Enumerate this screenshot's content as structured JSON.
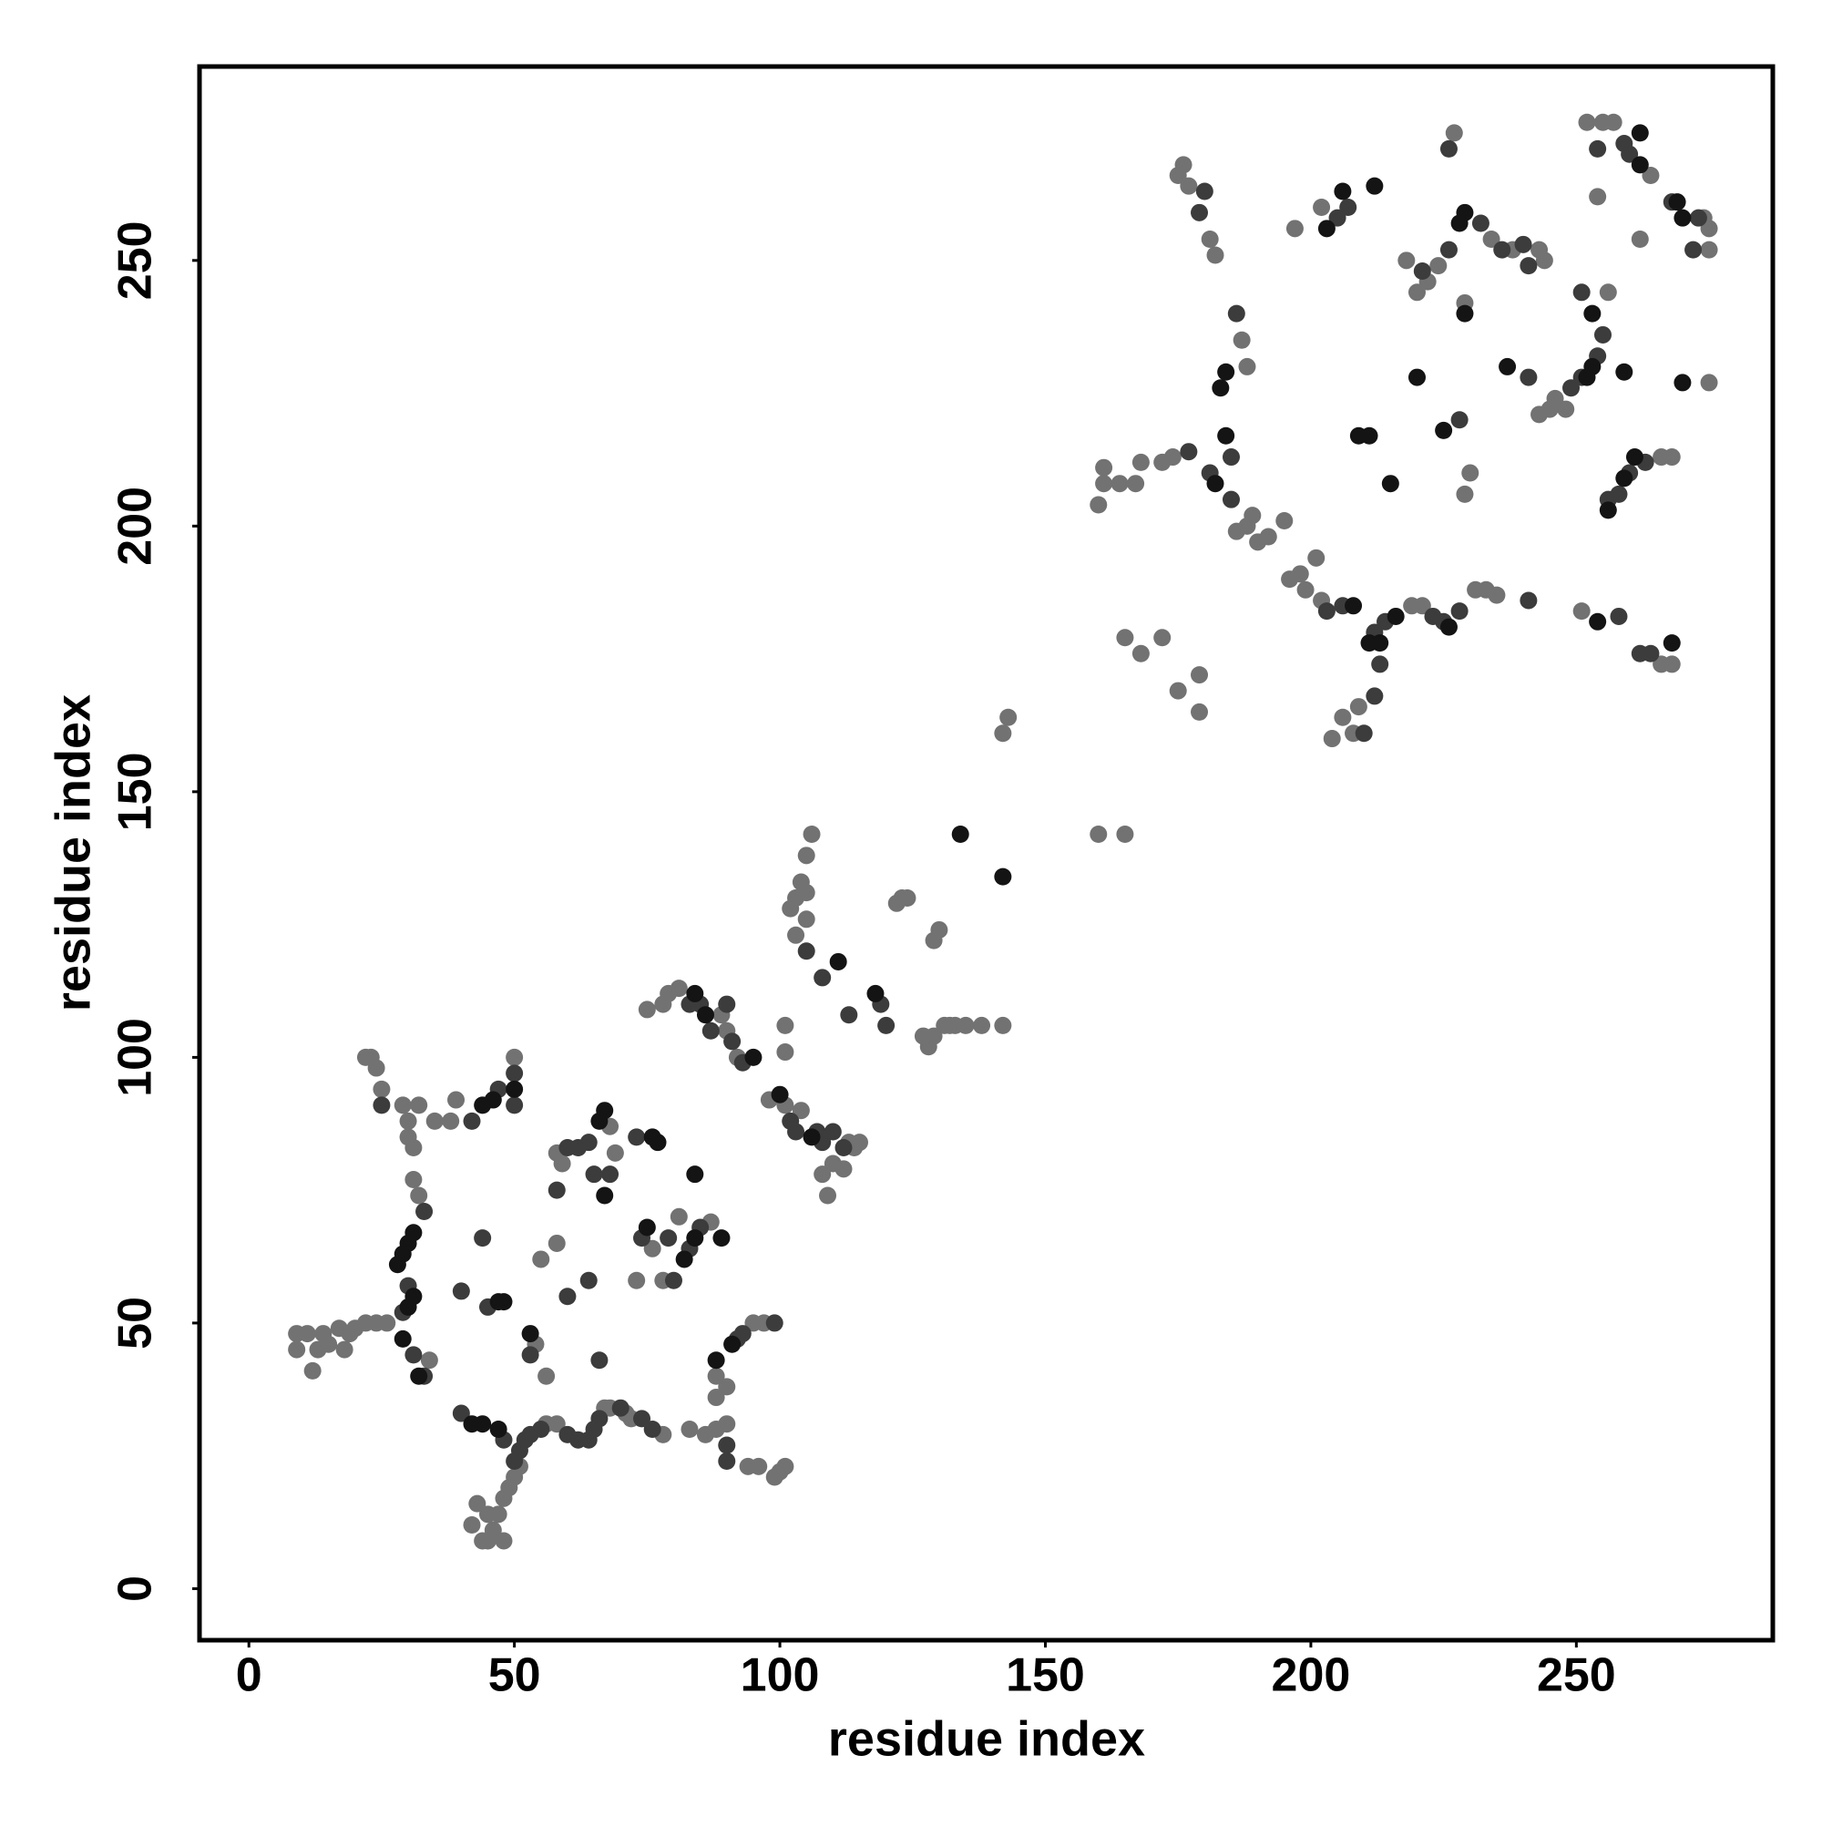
{
  "chart_data": {
    "type": "scatter",
    "xlabel": "residue index",
    "ylabel": "residue index",
    "xlim": [
      -9.3,
      287
    ],
    "ylim": [
      -9.7,
      286.5
    ],
    "xticks": [
      0,
      50,
      100,
      150,
      200,
      250
    ],
    "yticks": [
      0,
      50,
      100,
      150,
      200,
      250
    ],
    "series": [
      {
        "color": "#727272",
        "x": [
          9,
          9,
          11,
          12,
          13,
          14,
          15,
          17,
          18,
          19,
          20,
          22,
          24,
          26,
          22,
          23,
          24,
          25,
          29,
          30,
          30,
          31,
          32,
          31,
          32,
          34,
          35,
          38,
          39,
          50,
          54,
          56,
          55,
          58,
          51,
          50,
          49,
          48,
          47,
          46,
          45,
          44,
          48,
          42,
          45,
          43,
          56,
          58,
          67,
          68,
          71,
          72,
          78,
          83,
          86,
          88,
          90,
          94,
          96,
          99,
          100,
          101,
          90,
          88,
          88,
          95,
          97,
          58,
          59,
          68,
          69,
          76,
          78,
          73,
          87,
          81,
          75,
          78,
          79,
          81,
          89,
          92,
          90,
          98,
          101,
          104,
          113,
          114,
          115,
          110,
          112,
          109,
          108,
          101,
          101,
          103,
          102,
          103,
          104,
          105,
          105,
          106,
          105,
          122,
          123,
          124,
          127,
          128,
          129,
          129,
          130,
          131,
          132,
          133,
          135,
          138,
          142,
          142,
          143,
          160,
          165,
          165,
          168,
          172,
          175,
          179,
          179,
          160,
          161,
          161,
          164,
          167,
          168,
          172,
          174,
          187,
          188,
          175,
          176,
          177,
          181,
          182,
          186,
          188,
          189,
          190,
          192,
          195,
          196,
          198,
          199,
          201,
          202,
          204,
          206,
          208,
          209,
          219,
          221,
          231,
          233,
          235,
          197,
          202,
          220,
          222,
          224,
          234,
          238,
          243,
          244,
          227,
          229,
          230,
          243,
          245,
          246,
          248,
          256,
          252,
          255,
          257,
          264,
          262,
          254,
          275,
          275,
          274,
          251,
          266,
          268,
          275,
          266,
          268,
          229,
          218
        ],
        "y": [
          48,
          45,
          48,
          41,
          45,
          48,
          46,
          49,
          45,
          48,
          49,
          50,
          50,
          50,
          100,
          100,
          98,
          94,
          91,
          88,
          85,
          83,
          91,
          77,
          74,
          43,
          88,
          88,
          92,
          100,
          46,
          40,
          62,
          65,
          23,
          21,
          19,
          17,
          14,
          11,
          9,
          9,
          9,
          12,
          14,
          16,
          31,
          31,
          34,
          34,
          33,
          32,
          29,
          30,
          29,
          30,
          31,
          23,
          23,
          21,
          22,
          23,
          38,
          36,
          40,
          50,
          50,
          82,
          80,
          87,
          82,
          64,
          58,
          58,
          69,
          70,
          109,
          110,
          112,
          113,
          108,
          100,
          105,
          92,
          91,
          90,
          84,
          83,
          84,
          80,
          79,
          74,
          78,
          106,
          101,
          123,
          128,
          130,
          133,
          131,
          138,
          142,
          126,
          129,
          130,
          130,
          104,
          102,
          104,
          122,
          124,
          106,
          106,
          106,
          106,
          106,
          106,
          161,
          164,
          142,
          142,
          179,
          176,
          179,
          169,
          172,
          165,
          204,
          208,
          211,
          208,
          208,
          212,
          212,
          213,
          235,
          230,
          266,
          268,
          264,
          254,
          251,
          199,
          200,
          202,
          197,
          198,
          201,
          190,
          191,
          188,
          194,
          186,
          160,
          164,
          161,
          166,
          185,
          185,
          188,
          188,
          187,
          256,
          260,
          244,
          246,
          249,
          254,
          252,
          252,
          250,
          274,
          206,
          210,
          221,
          222,
          224,
          222,
          244,
          276,
          276,
          276,
          266,
          254,
          262,
          256,
          252,
          258,
          184,
          174,
          174,
          227,
          213,
          213,
          242,
          250
        ]
      },
      {
        "color": "#3c3c3c",
        "x": [
          33,
          30,
          29,
          31,
          33,
          25,
          42,
          47,
          50,
          50,
          44,
          40,
          45,
          53,
          60,
          64,
          66,
          40,
          48,
          50,
          51,
          52,
          53,
          55,
          60,
          62,
          64,
          65,
          66,
          70,
          74,
          76,
          90,
          90,
          92,
          93,
          99,
          60,
          62,
          64,
          58,
          65,
          68,
          73,
          74,
          79,
          80,
          83,
          85,
          83,
          85,
          87,
          90,
          91,
          93,
          102,
          103,
          107,
          108,
          110,
          112,
          105,
          108,
          113,
          119,
          120,
          180,
          179,
          181,
          185,
          177,
          186,
          185,
          203,
          206,
          212,
          214,
          223,
          225,
          228,
          241,
          205,
          207,
          221,
          226,
          232,
          236,
          240,
          241,
          226,
          228,
          241,
          249,
          251,
          254,
          251,
          255,
          254,
          259,
          260,
          268,
          272,
          273,
          262,
          264,
          258,
          258,
          260,
          263,
          256,
          213,
          210,
          212
        ],
        "y": [
          71,
          57,
          52,
          44,
          40,
          91,
          88,
          94,
          97,
          91,
          66,
          56,
          53,
          44,
          55,
          58,
          43,
          33,
          28,
          24,
          26,
          28,
          29,
          30,
          29,
          28,
          28,
          30,
          32,
          34,
          32,
          30,
          27,
          24,
          47,
          48,
          50,
          83,
          83,
          84,
          75,
          78,
          78,
          85,
          66,
          66,
          58,
          64,
          68,
          110,
          110,
          105,
          110,
          103,
          99,
          88,
          86,
          86,
          84,
          86,
          83,
          120,
          115,
          108,
          110,
          106,
          263,
          259,
          210,
          213,
          214,
          240,
          205,
          184,
          185,
          180,
          182,
          183,
          182,
          184,
          186,
          258,
          260,
          248,
          252,
          257,
          252,
          253,
          249,
          271,
          220,
          228,
          226,
          228,
          232,
          244,
          236,
          271,
          272,
          270,
          261,
          252,
          258,
          176,
          176,
          183,
          206,
          210,
          212,
          205,
          174,
          161,
          168
        ]
      },
      {
        "color": "#141414",
        "x": [
          31,
          30,
          29,
          28,
          31,
          30,
          29,
          32,
          47,
          48,
          53,
          44,
          46,
          50,
          42,
          44,
          47,
          67,
          66,
          67,
          76,
          77,
          75,
          84,
          84,
          82,
          89,
          88,
          91,
          86,
          84,
          95,
          100,
          106,
          111,
          118,
          134,
          142,
          183,
          184,
          182,
          184,
          211,
          213,
          216,
          226,
          228,
          229,
          208,
          206,
          212,
          203,
          220,
          225,
          215,
          209,
          211,
          229,
          237,
          252,
          253,
          259,
          262,
          262,
          269,
          270,
          256,
          259,
          261,
          268,
          270,
          253,
          254
        ],
        "y": [
          67,
          65,
          63,
          61,
          55,
          53,
          47,
          40,
          54,
          54,
          48,
          91,
          92,
          94,
          31,
          31,
          30,
          90,
          88,
          74,
          85,
          84,
          68,
          78,
          66,
          62,
          66,
          43,
          46,
          108,
          112,
          100,
          93,
          85,
          118,
          112,
          142,
          134,
          226,
          229,
          208,
          217,
          178,
          178,
          183,
          181,
          257,
          259,
          185,
          263,
          264,
          256,
          228,
          218,
          208,
          217,
          217,
          240,
          230,
          228,
          230,
          229,
          268,
          274,
          261,
          258,
          203,
          209,
          213,
          178,
          227,
          240,
          182
        ]
      }
    ]
  }
}
